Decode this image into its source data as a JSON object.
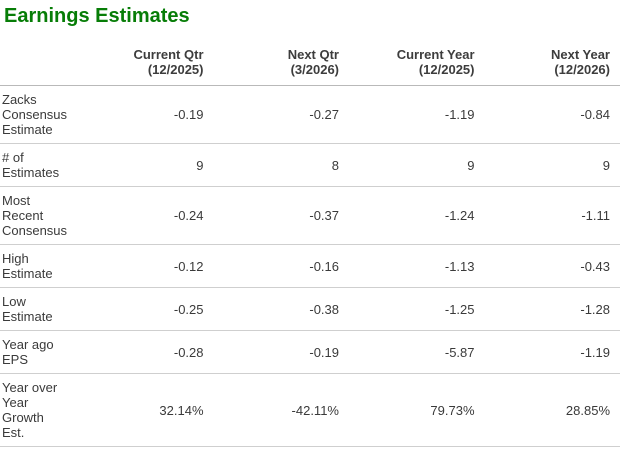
{
  "title": "Earnings Estimates",
  "colors": {
    "title_green": "#077d07",
    "text": "#3a3a3a",
    "row_border": "#cfcfcf",
    "header_border": "#b9b9b9"
  },
  "table": {
    "columns": [
      "",
      "Current Qtr\n(12/2025)",
      "Next Qtr\n(3/2026)",
      "Current Year\n(12/2025)",
      "Next Year\n(12/2026)"
    ],
    "rows": [
      {
        "label": "Zacks\nConsensus\nEstimate",
        "values": [
          "-0.19",
          "-0.27",
          "-1.19",
          "-0.84"
        ]
      },
      {
        "label": "# of\nEstimates",
        "values": [
          "9",
          "8",
          "9",
          "9"
        ]
      },
      {
        "label": "Most\nRecent\nConsensus",
        "values": [
          "-0.24",
          "-0.37",
          "-1.24",
          "-1.11"
        ]
      },
      {
        "label": "High\nEstimate",
        "values": [
          "-0.12",
          "-0.16",
          "-1.13",
          "-0.43"
        ]
      },
      {
        "label": "Low\nEstimate",
        "values": [
          "-0.25",
          "-0.38",
          "-1.25",
          "-1.28"
        ]
      },
      {
        "label": "Year ago\nEPS",
        "values": [
          "-0.28",
          "-0.19",
          "-5.87",
          "-1.19"
        ]
      },
      {
        "label": "Year over\nYear\nGrowth\nEst.",
        "values": [
          "32.14%",
          "-42.11%",
          "79.73%",
          "28.85%"
        ]
      }
    ]
  }
}
